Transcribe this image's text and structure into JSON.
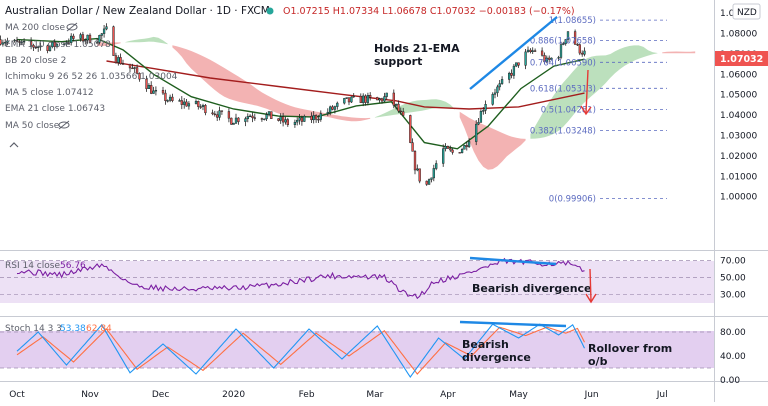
{
  "header": {
    "title": "Australian Dollar / New Zealand Dollar · 1D · FXCM",
    "ohlc": "O1.07215  H1.07334  L1.06678  C1.07032  −0.00183 (−0.17%)",
    "currency": "NZD",
    "last_price": "1.07032",
    "indicators": [
      "MA 200 close",
      "EMA 110 close  1.05078",
      "BB 20 close 2",
      "Ichimoku 9 26 52 26   1.03566  1.03004",
      "MA 5 close  1.07412",
      "EMA 21 close  1.06743",
      "MA 50 close"
    ]
  },
  "annotations": {
    "ema_support": [
      "Holds 21-EMA",
      "support"
    ],
    "rsi_divergence": "Bearish divergence",
    "stoch_divergence": [
      "Bearish",
      "divergence"
    ],
    "rollover": [
      "Rollover from",
      "o/b"
    ]
  },
  "rsi": {
    "label": "RSI 14 close",
    "value": "56.76"
  },
  "stoch": {
    "label": "Stoch 14 3 3",
    "k": "53.38",
    "d": "62.84"
  },
  "colors": {
    "bull": "#26a69a",
    "bear": "#ef5350",
    "ema21": "#1e5e1e",
    "ema110": "#a31d1d",
    "cloud_green": "#a5d6a7",
    "cloud_red": "#ef9a9a",
    "trendline": "#2196f3",
    "rsi_line": "#7b1fa2",
    "stoch_k": "#2196f3",
    "stoch_d": "#ff7043",
    "price_tag": "#ef5350"
  },
  "chart_data": [
    {
      "type": "candlestick",
      "title": "Australian Dollar / New Zealand Dollar, 1D, FXCM",
      "x_ticks": [
        "Oct",
        "Nov",
        "Dec",
        "2020",
        "Feb",
        "Mar",
        "Apr",
        "May",
        "Jun",
        "Jul"
      ],
      "y_ticks": [
        "1.09000",
        "1.08000",
        "1.07000",
        "1.06000",
        "1.05000",
        "1.04000",
        "1.03000",
        "1.02000",
        "1.01000",
        "1.00000"
      ],
      "ylim": [
        0.9955,
        1.0905
      ],
      "fib_levels": [
        {
          "label": "1(1.08655)",
          "value": 1.08655
        },
        {
          "label": "0.886(1.07658)",
          "value": 1.07658
        },
        {
          "label": "0.764(1.06590)",
          "value": 1.0659
        },
        {
          "label": "0.618(1.05313)",
          "value": 1.05313
        },
        {
          "label": "0.5(1.04281)",
          "value": 1.04281
        },
        {
          "label": "0.382(1.03248)",
          "value": 1.03248
        },
        {
          "label": "0(0.99906)",
          "value": 0.99906
        }
      ],
      "close_path": [
        [
          "2019-09-24",
          1.077
        ],
        [
          "2019-10-05",
          1.074
        ],
        [
          "2019-10-15",
          1.0735
        ],
        [
          "2019-10-25",
          1.0775
        ],
        [
          "2019-11-04",
          1.0775
        ],
        [
          "2019-11-08",
          1.0815
        ],
        [
          "2019-11-12",
          1.068
        ],
        [
          "2019-11-20",
          1.0615
        ],
        [
          "2019-11-28",
          1.051
        ],
        [
          "2019-12-06",
          1.0465
        ],
        [
          "2019-12-14",
          1.0455
        ],
        [
          "2019-12-22",
          1.0425
        ],
        [
          "2019-12-31",
          1.0375
        ],
        [
          "2020-01-08",
          1.04
        ],
        [
          "2020-01-16",
          1.0395
        ],
        [
          "2020-01-24",
          1.036
        ],
        [
          "2020-02-01",
          1.0375
        ],
        [
          "2020-02-09",
          1.041
        ],
        [
          "2020-02-17",
          1.0465
        ],
        [
          "2020-02-25",
          1.048
        ],
        [
          "2020-03-02",
          1.047
        ],
        [
          "2020-03-06",
          1.049
        ],
        [
          "2020-03-10",
          1.044
        ],
        [
          "2020-03-14",
          1.036
        ],
        [
          "2020-03-18",
          1.015
        ],
        [
          "2020-03-22",
          1.003
        ],
        [
          "2020-03-26",
          1.014
        ],
        [
          "2020-03-30",
          1.023
        ],
        [
          "2020-04-03",
          1.0215
        ],
        [
          "2020-04-08",
          1.0245
        ],
        [
          "2020-04-13",
          1.036
        ],
        [
          "2020-04-18",
          1.049
        ],
        [
          "2020-04-23",
          1.054
        ],
        [
          "2020-04-28",
          1.061
        ],
        [
          "2020-05-03",
          1.069
        ],
        [
          "2020-05-08",
          1.072
        ],
        [
          "2020-05-13",
          1.066
        ],
        [
          "2020-05-18",
          1.07
        ],
        [
          "2020-05-22",
          1.0815
        ],
        [
          "2020-05-26",
          1.073
        ],
        [
          "2020-05-29",
          1.0703
        ]
      ],
      "series": [
        {
          "name": "EMA 21 close",
          "last": 1.06743,
          "points": [
            [
              "2019-10-01",
              1.077
            ],
            [
              "2019-10-20",
              1.076
            ],
            [
              "2019-11-04",
              1.0775
            ],
            [
              "2019-11-15",
              1.072
            ],
            [
              "2019-11-28",
              1.06
            ],
            [
              "2019-12-14",
              1.049
            ],
            [
              "2020-01-01",
              1.043
            ],
            [
              "2020-01-20",
              1.0395
            ],
            [
              "2020-02-05",
              1.039
            ],
            [
              "2020-02-22",
              1.0445
            ],
            [
              "2020-03-08",
              1.0465
            ],
            [
              "2020-03-22",
              1.0265
            ],
            [
              "2020-04-05",
              1.0235
            ],
            [
              "2020-04-18",
              1.0345
            ],
            [
              "2020-05-02",
              1.053
            ],
            [
              "2020-05-16",
              1.064
            ],
            [
              "2020-05-29",
              1.0674
            ]
          ]
        },
        {
          "name": "EMA 110 close",
          "last": 1.05078,
          "points": [
            [
              "2019-11-08",
              1.0665
            ],
            [
              "2019-11-28",
              1.0628
            ],
            [
              "2019-12-22",
              1.0582
            ],
            [
              "2020-01-20",
              1.054
            ],
            [
              "2020-02-17",
              1.05
            ],
            [
              "2020-03-10",
              1.047
            ],
            [
              "2020-03-22",
              1.044
            ],
            [
              "2020-04-10",
              1.043
            ],
            [
              "2020-05-01",
              1.044
            ],
            [
              "2020-05-29",
              1.0508
            ]
          ]
        }
      ]
    },
    {
      "type": "line",
      "title": "RSI 14 close",
      "y_ticks": [
        "70.00",
        "50.00",
        "30.00"
      ],
      "ylim": [
        20,
        75
      ],
      "series": [
        {
          "name": "RSI 14 close",
          "last": 56.76,
          "points": [
            [
              "2019-10-01",
              58
            ],
            [
              "2019-10-20",
              53
            ],
            [
              "2019-11-06",
              65
            ],
            [
              "2019-11-20",
              40
            ],
            [
              "2019-12-08",
              36
            ],
            [
              "2020-01-01",
              37
            ],
            [
              "2020-01-20",
              42
            ],
            [
              "2020-02-10",
              52
            ],
            [
              "2020-03-05",
              50
            ],
            [
              "2020-03-14",
              30
            ],
            [
              "2020-03-20",
              28
            ],
            [
              "2020-03-26",
              45
            ],
            [
              "2020-04-07",
              53
            ],
            [
              "2020-04-18",
              63
            ],
            [
              "2020-04-25",
              69
            ],
            [
              "2020-05-08",
              67
            ],
            [
              "2020-05-22",
              66
            ],
            [
              "2020-05-29",
              57
            ]
          ]
        }
      ]
    },
    {
      "type": "line",
      "title": "Stoch 14 3 3",
      "y_ticks": [
        "80.00",
        "40.00",
        "0.00"
      ],
      "ylim": [
        0,
        95
      ],
      "series": [
        {
          "name": "%K",
          "last": 53.38,
          "points": [
            [
              "2019-10-01",
              48
            ],
            [
              "2019-10-10",
              80
            ],
            [
              "2019-10-22",
              25
            ],
            [
              "2019-11-06",
              92
            ],
            [
              "2019-11-18",
              12
            ],
            [
              "2019-12-02",
              60
            ],
            [
              "2019-12-16",
              10
            ],
            [
              "2020-01-02",
              85
            ],
            [
              "2020-01-18",
              20
            ],
            [
              "2020-02-02",
              85
            ],
            [
              "2020-02-16",
              35
            ],
            [
              "2020-03-02",
              90
            ],
            [
              "2020-03-16",
              5
            ],
            [
              "2020-03-28",
              70
            ],
            [
              "2020-04-08",
              35
            ],
            [
              "2020-04-20",
              93
            ],
            [
              "2020-05-01",
              70
            ],
            [
              "2020-05-10",
              93
            ],
            [
              "2020-05-18",
              75
            ],
            [
              "2020-05-24",
              92
            ],
            [
              "2020-05-29",
              53
            ]
          ]
        },
        {
          "name": "%D",
          "last": 62.84,
          "points": [
            [
              "2019-10-01",
              42
            ],
            [
              "2019-10-12",
              72
            ],
            [
              "2019-10-25",
              30
            ],
            [
              "2019-11-08",
              85
            ],
            [
              "2019-11-21",
              18
            ],
            [
              "2019-12-04",
              55
            ],
            [
              "2019-12-19",
              16
            ],
            [
              "2020-01-05",
              78
            ],
            [
              "2020-01-21",
              26
            ],
            [
              "2020-02-05",
              78
            ],
            [
              "2020-02-19",
              40
            ],
            [
              "2020-03-05",
              82
            ],
            [
              "2020-03-19",
              10
            ],
            [
              "2020-03-31",
              62
            ],
            [
              "2020-04-11",
              40
            ],
            [
              "2020-04-23",
              88
            ],
            [
              "2020-05-04",
              74
            ],
            [
              "2020-05-13",
              88
            ],
            [
              "2020-05-21",
              78
            ],
            [
              "2020-05-26",
              86
            ],
            [
              "2020-05-29",
              63
            ]
          ]
        }
      ]
    }
  ]
}
